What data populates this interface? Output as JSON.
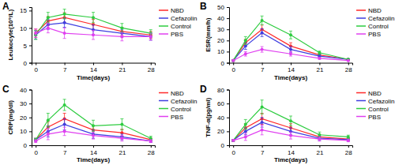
{
  "chart_data": [
    {
      "type": "line",
      "title": "A",
      "x_label": "Time(days)",
      "y_label": "Leukocyte(10⁹/L)",
      "x": [
        0,
        3,
        7,
        14,
        21,
        28
      ],
      "xlim": [
        -1,
        29
      ],
      "xticks": [
        0,
        7,
        14,
        21,
        28
      ],
      "ylim": [
        0,
        16
      ],
      "yticks": [
        0,
        5,
        10,
        15
      ],
      "legend": "right",
      "marker": "circle",
      "series": [
        {
          "name": "NBD",
          "color": "#ff2a2a",
          "values": [
            8.5,
            12,
            13,
            11,
            9,
            8
          ],
          "errors": [
            1.2,
            1.3,
            1.4,
            1.5,
            1.2,
            1
          ]
        },
        {
          "name": "Cefazolin",
          "color": "#3f3fe0",
          "values": [
            8,
            11,
            11.5,
            9.5,
            8.5,
            7.5
          ],
          "errors": [
            1.2,
            1.4,
            1.3,
            1.4,
            1.1,
            1
          ]
        },
        {
          "name": "Control",
          "color": "#2ecc40",
          "values": [
            8,
            13,
            14,
            13,
            10,
            8.5
          ],
          "errors": [
            1.3,
            1.5,
            1.4,
            1.5,
            1.3,
            1
          ]
        },
        {
          "name": "PBS",
          "color": "#e040f0",
          "values": [
            8.5,
            10,
            8.5,
            8,
            7.5,
            7.5
          ],
          "errors": [
            1.2,
            1.4,
            1.5,
            1.3,
            1.2,
            1
          ]
        }
      ]
    },
    {
      "type": "line",
      "title": "B",
      "x_label": "Time(days)",
      "y_label": "ESR(mm/h)",
      "x": [
        0,
        3,
        7,
        14,
        21,
        28
      ],
      "xlim": [
        -1,
        29
      ],
      "xticks": [
        0,
        7,
        14,
        21,
        28
      ],
      "ylim": [
        0,
        50
      ],
      "yticks": [
        0,
        10,
        20,
        30,
        40,
        50
      ],
      "legend": "right",
      "marker": "circle",
      "series": [
        {
          "name": "NBD",
          "color": "#ff2a2a",
          "values": [
            2,
            18,
            30,
            15,
            7,
            3
          ],
          "errors": [
            0.5,
            3,
            4,
            3,
            1.5,
            0.5
          ]
        },
        {
          "name": "Cefazolin",
          "color": "#3f3fe0",
          "values": [
            2,
            15,
            27,
            12,
            6,
            3
          ],
          "errors": [
            0.5,
            3,
            3.5,
            2.5,
            1.5,
            0.5
          ]
        },
        {
          "name": "Control",
          "color": "#2ecc40",
          "values": [
            2,
            20,
            38,
            25,
            9,
            3
          ],
          "errors": [
            0.5,
            3.5,
            4,
            3.5,
            1.5,
            0.5
          ]
        },
        {
          "name": "PBS",
          "color": "#e040f0",
          "values": [
            2,
            8,
            12,
            8,
            4,
            2
          ],
          "errors": [
            0.5,
            2,
            2.5,
            2,
            1,
            0.5
          ]
        }
      ]
    },
    {
      "type": "line",
      "title": "C",
      "x_label": "Time(days)",
      "y_label": "CRP(mg/dl)",
      "x": [
        0,
        3,
        7,
        14,
        21,
        28
      ],
      "xlim": [
        -1,
        29
      ],
      "xticks": [
        0,
        7,
        14,
        21,
        28
      ],
      "ylim": [
        0,
        40
      ],
      "yticks": [
        0,
        10,
        20,
        30,
        40
      ],
      "legend": "right",
      "marker": "circle",
      "series": [
        {
          "name": "NBD",
          "color": "#ff2a2a",
          "values": [
            4,
            13,
            19,
            11,
            9,
            4
          ],
          "errors": [
            1,
            4,
            4,
            3,
            2.5,
            1
          ]
        },
        {
          "name": "Cefazolin",
          "color": "#3f3fe0",
          "values": [
            4,
            10,
            15,
            8,
            6,
            3
          ],
          "errors": [
            1,
            4,
            4,
            3,
            2,
            1
          ]
        },
        {
          "name": "Control",
          "color": "#2ecc40",
          "values": [
            4,
            18,
            29,
            14,
            15,
            5
          ],
          "errors": [
            1,
            5,
            4,
            4,
            4,
            1.5
          ]
        },
        {
          "name": "PBS",
          "color": "#e040f0",
          "values": [
            3,
            8,
            10,
            7,
            5,
            3
          ],
          "errors": [
            1,
            4,
            3,
            2.5,
            2,
            1
          ]
        }
      ]
    },
    {
      "type": "line",
      "title": "D",
      "x_label": "Time(days)",
      "y_label": "TNF-α(pg/ml)",
      "x": [
        0,
        3,
        7,
        14,
        21,
        28
      ],
      "xlim": [
        -1,
        29
      ],
      "xticks": [
        0,
        7,
        14,
        21,
        28
      ],
      "ylim": [
        0,
        80
      ],
      "yticks": [
        0,
        20,
        40,
        60,
        80
      ],
      "legend": "right",
      "marker": "circle",
      "series": [
        {
          "name": "NBD",
          "color": "#ff2a2a",
          "values": [
            7,
            25,
            38,
            25,
            12,
            9
          ],
          "errors": [
            1.5,
            6,
            8,
            6,
            3,
            2
          ]
        },
        {
          "name": "Cefazolin",
          "color": "#3f3fe0",
          "values": [
            7,
            20,
            33,
            20,
            10,
            8
          ],
          "errors": [
            1.5,
            5,
            7,
            5,
            3,
            2
          ]
        },
        {
          "name": "Control",
          "color": "#2ecc40",
          "values": [
            7,
            30,
            55,
            35,
            15,
            12
          ],
          "errors": [
            1.5,
            7,
            10,
            7,
            4,
            2.5
          ]
        },
        {
          "name": "PBS",
          "color": "#e040f0",
          "values": [
            7,
            12,
            22,
            14,
            9,
            7
          ],
          "errors": [
            1.5,
            5,
            7,
            5,
            3,
            2
          ]
        }
      ]
    }
  ]
}
